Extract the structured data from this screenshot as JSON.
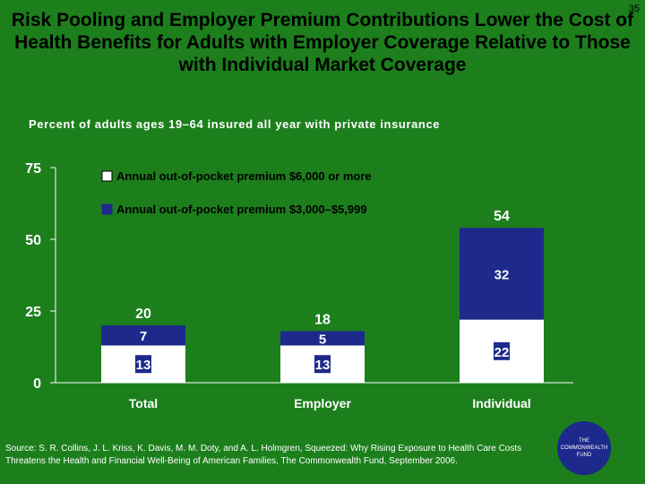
{
  "slide": {
    "number": "35"
  },
  "title": "Risk Pooling and Employer Premium Contributions Lower the Cost of Health Benefits for Adults with Employer Coverage Relative to Those with Individual Market Coverage",
  "subtitle": "Percent of adults ages 19–64 insured all year with private insurance",
  "source": "Source: S. R. Collins, J. L. Kriss, K. Davis, M. M. Doty, and A. L. Holmgren, Squeezed: Why Rising Exposure to Health Care Costs Threatens the Health and Financial Well-Being of American Families, The Commonwealth Fund, September 2006.",
  "logo": {
    "line1": "THE",
    "line2": "COMMONWEALTH",
    "line3": "FUND"
  },
  "colors": {
    "background": "#1c7f1c",
    "series_white": "#ffffff",
    "series_navy": "#1d2a8c",
    "axis": "#ffffff",
    "label_text": "#ffffff"
  },
  "chart_data": {
    "type": "bar",
    "stacked": true,
    "categories": [
      "Total",
      "Employer",
      "Individual"
    ],
    "series": [
      {
        "name": "Annual out-of-pocket premium $6,000 or more",
        "values": [
          13,
          13,
          22
        ]
      },
      {
        "name": "Annual out-of-pocket premium $3,000–$5,999",
        "values": [
          7,
          5,
          32
        ]
      }
    ],
    "totals": [
      20,
      18,
      54
    ],
    "ylim": [
      0,
      75
    ],
    "yticks": [
      0,
      25,
      50,
      75
    ],
    "legend_position": "top-left"
  }
}
